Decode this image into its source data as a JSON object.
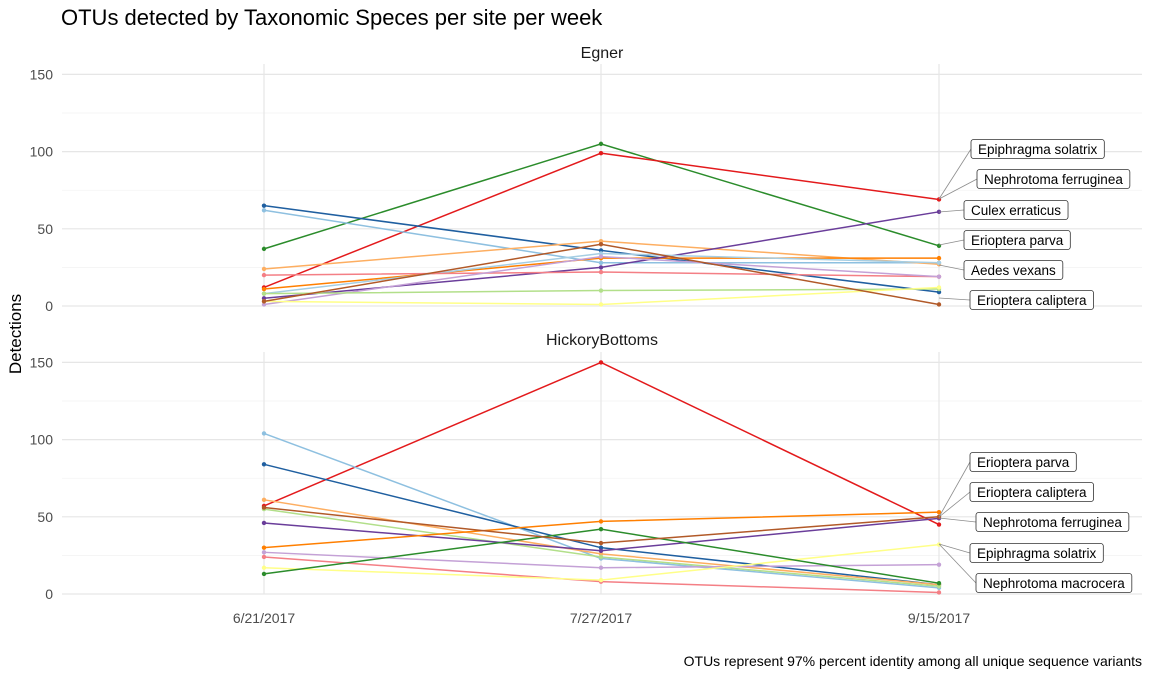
{
  "chart_data": {
    "type": "line",
    "title": "OTUs detected by Taxonomic Speces per site per week",
    "caption": "OTUs represent 97% percent identity among all unique sequence variants",
    "ylabel": "Detections",
    "xlabel": "",
    "x_categories": [
      "6/21/2017",
      "7/27/2017",
      "9/15/2017"
    ],
    "ylim": [
      0,
      155
    ],
    "y_ticks": [
      0,
      50,
      100,
      150
    ],
    "grid": true,
    "legend": "none",
    "panels": [
      {
        "facet": "Egner",
        "series": [
          {
            "color": "#2b8c2b",
            "values": [
              37,
              105,
              39
            ]
          },
          {
            "color": "#e31a1c",
            "values": [
              12,
              99,
              69
            ]
          },
          {
            "color": "#1f5fa0",
            "values": [
              65,
              36,
              9
            ]
          },
          {
            "color": "#8ec0e0",
            "values": [
              62,
              28,
              28
            ]
          },
          {
            "color": "#fdae61",
            "values": [
              24,
              42,
              27
            ]
          },
          {
            "color": "#ff7f00",
            "values": [
              11,
              31,
              31
            ]
          },
          {
            "color": "#6a3d9a",
            "values": [
              5,
              25,
              61
            ]
          },
          {
            "color": "#a6cee3",
            "values": [
              8,
              34,
              28
            ]
          },
          {
            "color": "#f47f85",
            "values": [
              20,
              22,
              19
            ]
          },
          {
            "color": "#c4a1d6",
            "values": [
              1,
              32,
              19
            ]
          },
          {
            "color": "#b2df8a",
            "values": [
              8,
              10,
              11
            ]
          },
          {
            "color": "#ffff88",
            "values": [
              3,
              1,
              12
            ]
          },
          {
            "color": "#b15928",
            "values": [
              3,
              40,
              1
            ]
          }
        ],
        "annotations": [
          "Epiphragma solatrix",
          "Nephrotoma ferruginea",
          "Culex erraticus",
          "Erioptera parva",
          "Aedes vexans",
          "Erioptera caliptera"
        ]
      },
      {
        "facet": "HickoryBottoms",
        "series": [
          {
            "color": "#e31a1c",
            "values": [
              57,
              150,
              45
            ]
          },
          {
            "color": "#8ec0e0",
            "values": [
              104,
              23,
              4
            ]
          },
          {
            "color": "#1f5fa0",
            "values": [
              84,
              30,
              6
            ]
          },
          {
            "color": "#fdae61",
            "values": [
              61,
              26,
              6
            ]
          },
          {
            "color": "#b2df8a",
            "values": [
              55,
              24,
              5
            ]
          },
          {
            "color": "#6a3d9a",
            "values": [
              46,
              28,
              49
            ]
          },
          {
            "color": "#ff7f00",
            "values": [
              30,
              47,
              53
            ]
          },
          {
            "color": "#c4a1d6",
            "values": [
              27,
              17,
              19
            ]
          },
          {
            "color": "#f47f85",
            "values": [
              24,
              8,
              1
            ]
          },
          {
            "color": "#ffff88",
            "values": [
              17,
              9,
              32
            ]
          },
          {
            "color": "#2b8c2b",
            "values": [
              13,
              42,
              7
            ]
          },
          {
            "color": "#b15928",
            "values": [
              56,
              33,
              50
            ]
          }
        ],
        "annotations": [
          "Erioptera parva",
          "Erioptera caliptera",
          "Nephrotoma ferruginea",
          "Epiphragma solatrix",
          "Nephrotoma macrocera"
        ]
      }
    ]
  }
}
